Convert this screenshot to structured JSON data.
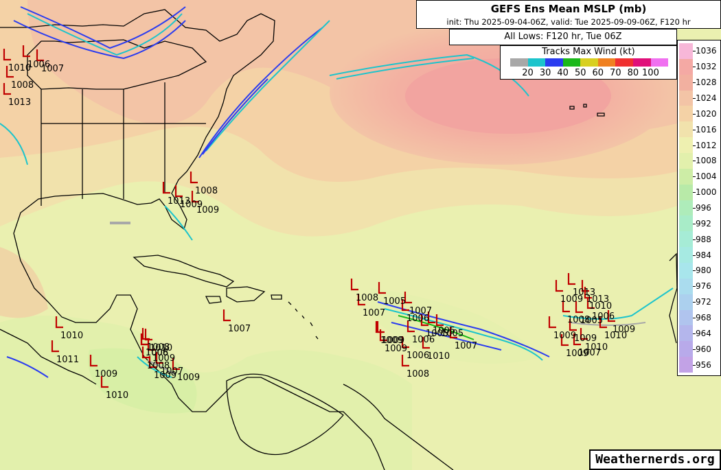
{
  "header": {
    "title": "GEFS Ens Mean MSLP (mb)",
    "subtitle": "init: Thu 2025-09-04-06Z, valid: Tue 2025-09-09-06Z, F120 hr",
    "lows_label": "All Lows: F120 hr, Tue 06Z"
  },
  "wind_legend": {
    "title": "Tracks Max Wind (kt)",
    "labels": [
      "20",
      "30",
      "40",
      "50",
      "60",
      "70",
      "80",
      "100"
    ],
    "colors": [
      "#a8a8a8",
      "#1cc4cc",
      "#2a3cf0",
      "#1ab81a",
      "#d8d020",
      "#f08020",
      "#f03030",
      "#e0107a",
      "#f070f0"
    ]
  },
  "mslp_legend": {
    "levels": [
      "1036",
      "1032",
      "1028",
      "1024",
      "1020",
      "1016",
      "1012",
      "1008",
      "1004",
      "1000",
      "996",
      "992",
      "988",
      "984",
      "980",
      "976",
      "972",
      "968",
      "964",
      "960",
      "956"
    ],
    "colors": [
      "#f7b7d8",
      "#f4a9a4",
      "#f2b0a0",
      "#f3c4a6",
      "#f4d2a6",
      "#f1e2ac",
      "#eef0b0",
      "#e2f0ac",
      "#cdeda6",
      "#b8eaa8",
      "#aeecba",
      "#a8ecc8",
      "#a6ecd6",
      "#a6eae2",
      "#a8e6ec",
      "#aadcee",
      "#acd0ee",
      "#b0c4ee",
      "#b4b6ec",
      "#b8aaea",
      "#c2a2e6"
    ]
  },
  "watermark": "Weathernerds.org",
  "low_labels": {
    "north": [
      "1010",
      "1006",
      "1007",
      "1008",
      "1013"
    ],
    "florida": [
      "1008",
      "1013",
      "1009",
      "1009"
    ],
    "gulf_honduras": [
      "1010",
      "1008",
      "1011",
      "1009",
      "1008",
      "1010",
      "1010",
      "1006",
      "1009",
      "1008",
      "1007",
      "1009",
      "1009"
    ],
    "central": [
      "1007"
    ],
    "mdr": [
      "1008",
      "1005",
      "1007",
      "1007",
      "1009",
      "1006",
      "1005",
      "1005",
      "1006",
      "1005",
      "1009",
      "1009",
      "1006",
      "1010",
      "1007",
      "1008"
    ],
    "east": [
      "1013",
      "1009",
      "1013",
      "1010",
      "1008",
      "1006",
      "1005",
      "1009",
      "1009",
      "1010",
      "1009",
      "1010",
      "1007",
      "1009"
    ]
  }
}
